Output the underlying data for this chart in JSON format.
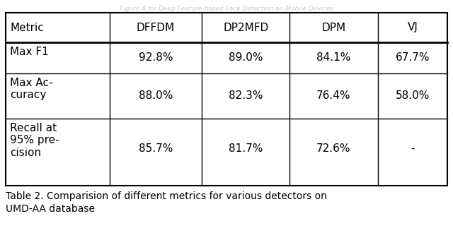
{
  "title_above": "Figure 4 for Deep Feature-based Face Detection on Mobile Devices",
  "caption_line1": "Table 2. Comparision of different metrics for various detectors on",
  "caption_line2": "UMD-AA database",
  "headers": [
    "Metric",
    "DFFDM",
    "DP2MFD",
    "DPM",
    "VJ"
  ],
  "rows": [
    [
      "Max F1",
      "92.8%",
      "89.0%",
      "84.1%",
      "67.7%"
    ],
    [
      "Max Ac-\ncuracy",
      "88.0%",
      "82.3%",
      "76.4%",
      "58.0%"
    ],
    [
      "Recall at\n95% pre-\ncision",
      "85.7%",
      "81.7%",
      "72.6%",
      "-"
    ]
  ],
  "background_color": "#ffffff",
  "border_color": "#000000",
  "text_color": "#000000",
  "font_size": 11,
  "caption_font_size": 10,
  "title_font_size": 6.5,
  "title_color": "#cccccc"
}
